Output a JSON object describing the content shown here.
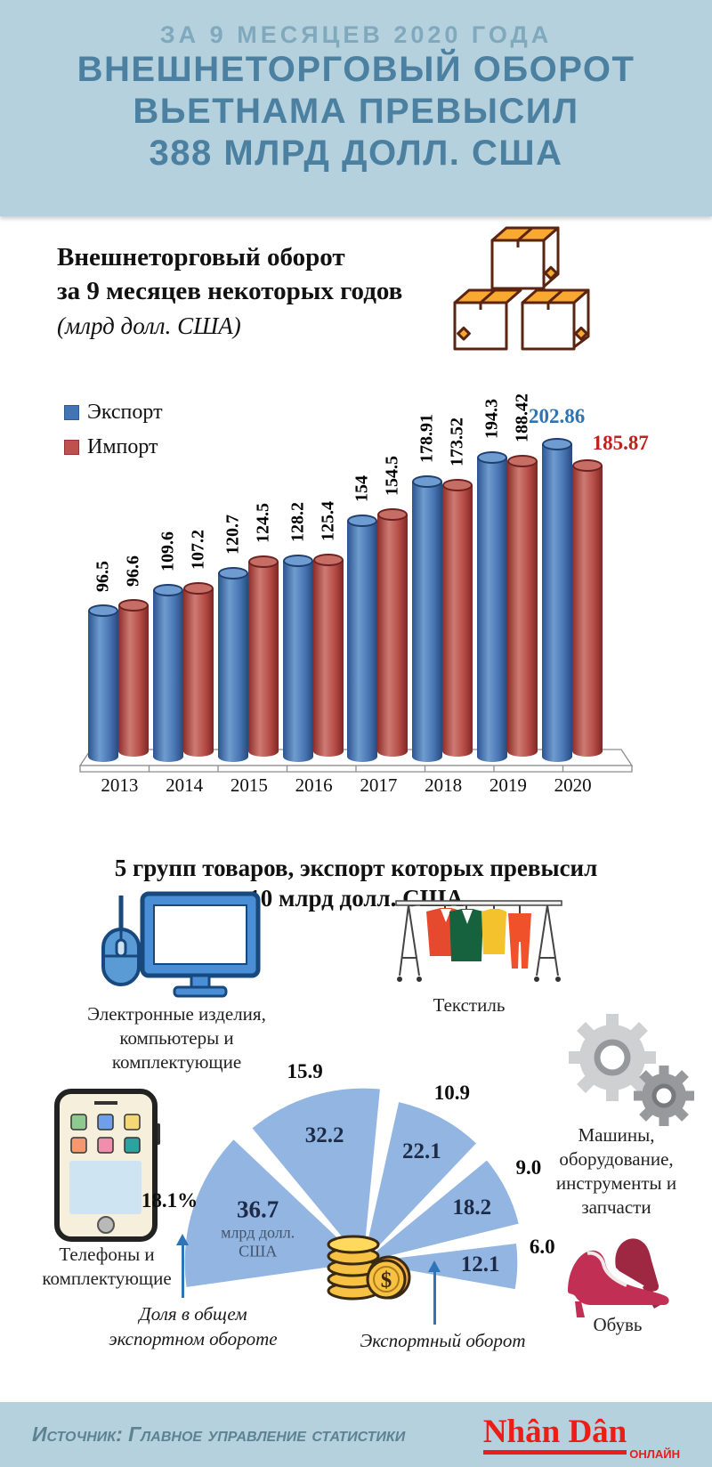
{
  "header": {
    "kicker": "ЗА 9 МЕСЯЦЕВ 2020 ГОДА",
    "title_lines": [
      "ВНЕШНЕТОРГОВЫЙ ОБОРОТ",
      "ВЬЕТНАМА ПРЕВЫСИЛ",
      "388 МЛРД ДОЛЛ. США"
    ]
  },
  "trade_section": {
    "title_line1": "Внешнеторговый оборот",
    "title_line2": "за 9 месяцев некоторых годов",
    "subtitle": "(млрд долл. США)",
    "legend": {
      "export_label": "Экспорт",
      "import_label": "Импорт",
      "export_color": "#4374b5",
      "import_color": "#c0504d",
      "export_value_color": "#2e74b5",
      "import_value_color": "#c1201c"
    }
  },
  "chart_data": [
    {
      "type": "bar",
      "title": "Внешнеторговый оборот за 9 месяцев некоторых годов (млрд долл. США)",
      "categories": [
        "2013",
        "2014",
        "2015",
        "2016",
        "2017",
        "2018",
        "2019",
        "2020"
      ],
      "series": [
        {
          "name": "Экспорт",
          "values": [
            96.5,
            109.6,
            120.7,
            128.2,
            154,
            178.91,
            194.3,
            202.86
          ]
        },
        {
          "name": "Импорт",
          "values": [
            96.6,
            107.2,
            124.5,
            125.4,
            154.5,
            173.52,
            188.42,
            185.87
          ]
        }
      ],
      "ylim": [
        0,
        210
      ],
      "legend_position": "top-left",
      "grid": false
    },
    {
      "type": "pie",
      "title": "5 групп товаров, экспорт которых превысил 10 млрд долл. США",
      "categories": [
        "Телефоны и комплектующие",
        "Электронные изделия, компьютеры и комплектующие",
        "Текстиль",
        "Машины, оборудование, инструменты и запчасти",
        "Обувь"
      ],
      "values": [
        36.7,
        32.2,
        22.1,
        18.2,
        12.1
      ],
      "share_labels": [
        "18.1%",
        "15.9",
        "10.9",
        "9.0",
        "6.0"
      ],
      "unit": "млрд долл. США",
      "wedge_color": "#93b5e2"
    }
  ],
  "products_section": {
    "title_line1": "5 групп товаров, экспорт которых превысил",
    "title_line2": "10 млрд долл. США",
    "labels": {
      "electronics": "Электронные изделия, компьютеры и комплектующие",
      "textile": "Текстиль",
      "machines": "Машины, оборудование, инструменты и запчасти",
      "phones": "Телефоны и комплектующие",
      "footwear": "Обувь"
    },
    "unit_note_line1": "млрд долл.",
    "unit_note_line2": "США",
    "annotation_share": "Доля в общем экспортном обороте",
    "annotation_turnover": "Экспортный оборот",
    "coin_symbol": "$"
  },
  "footer": {
    "source": "Источник: Главное управление статистики",
    "logo": "Nhân Dân",
    "logo_suffix": "ОНЛАЙН"
  }
}
